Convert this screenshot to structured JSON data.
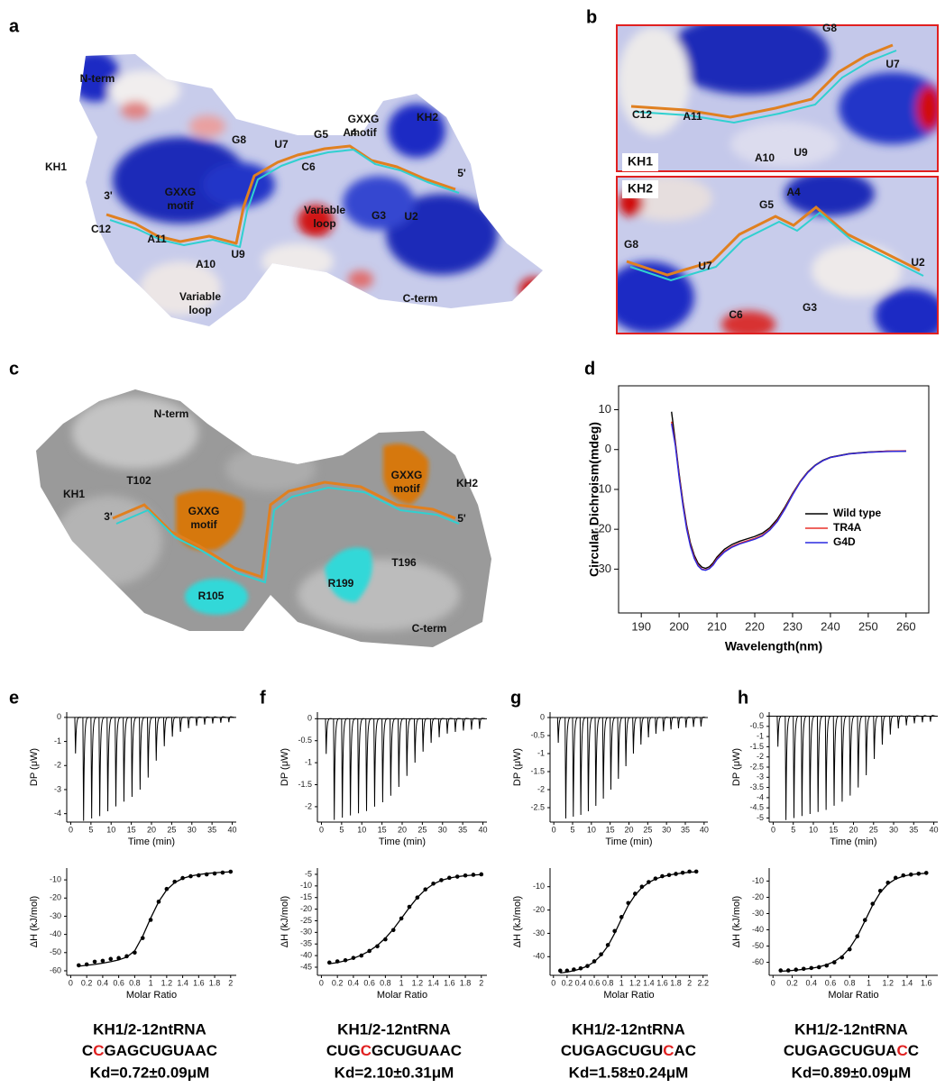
{
  "panel_labels": [
    "a",
    "b",
    "c",
    "d",
    "e",
    "f",
    "g",
    "h"
  ],
  "panel_a": {
    "labels": [
      "N-term",
      "KH1",
      "3'",
      [
        "GXXG",
        "motif"
      ],
      "C12",
      "A11",
      "A10",
      "U9",
      [
        "Variable",
        "loop"
      ],
      "G8",
      "U7",
      "G5",
      "A4",
      [
        "GXXG",
        "motif"
      ],
      "KH2",
      "C6",
      [
        "Variable",
        "loop"
      ],
      "G3",
      "U2",
      "5'",
      "C-term"
    ]
  },
  "panel_b": {
    "top": {
      "domain": "KH1",
      "labels": [
        "G8",
        "U7",
        "C12",
        "A11",
        "A10",
        "U9"
      ]
    },
    "bottom": {
      "domain": "KH2",
      "labels": [
        "A4",
        "G5",
        "G8",
        "U7",
        "C6",
        "U2",
        "G3"
      ]
    }
  },
  "panel_c": {
    "labels": [
      "N-term",
      "KH1",
      "T102",
      [
        "GXXG",
        "motif"
      ],
      "3'",
      "R105",
      "C-term",
      "R199",
      "T196",
      [
        "GXXG",
        "motif"
      ],
      "KH2",
      "5'"
    ]
  },
  "itc_captions": [
    {
      "construct": "KH1/2-12ntRNA",
      "sequence": [
        "C",
        "C",
        "GAGCUGUAAC"
      ],
      "kd": "Kd=0.72±0.09μM"
    },
    {
      "construct": "KH1/2-12ntRNA",
      "sequence": [
        "CUG",
        "C",
        "GCUGUAAC"
      ],
      "kd": "Kd=2.10±0.31μM"
    },
    {
      "construct": "KH1/2-12ntRNA",
      "sequence": [
        "CUGAGCUGU",
        "C",
        "AC"
      ],
      "kd": "Kd=1.58±0.24μM"
    },
    {
      "construct": "KH1/2-12ntRNA",
      "sequence": [
        "CUGAGCUGUA",
        "C",
        "C"
      ],
      "kd": "Kd=0.89±0.09μM"
    }
  ],
  "chart_data": [
    {
      "type": "line",
      "x_label": "Wavelength(nm)",
      "y_label": "Circular Dichroism(mdeg)",
      "x": [
        198,
        199,
        200,
        201,
        202,
        203,
        204,
        205,
        206,
        207,
        208,
        209,
        210,
        212,
        214,
        216,
        218,
        220,
        222,
        224,
        226,
        228,
        230,
        232,
        234,
        236,
        238,
        240,
        245,
        250,
        255,
        260
      ],
      "series": [
        {
          "name": "Wild type",
          "color": "#000000",
          "values": [
            9.5,
            2,
            -6,
            -13,
            -19,
            -23.5,
            -26.5,
            -28.5,
            -29.5,
            -29.8,
            -29.4,
            -28.4,
            -27,
            -25,
            -23.8,
            -23,
            -22.4,
            -21.8,
            -21,
            -19.6,
            -17.4,
            -14.4,
            -11,
            -8,
            -5.6,
            -3.9,
            -2.7,
            -1.9,
            -1,
            -0.6,
            -0.4,
            -0.4
          ]
        },
        {
          "name": "TR4A",
          "color": "#e8302a",
          "values": [
            7,
            1.5,
            -6.5,
            -13.5,
            -19.5,
            -24,
            -27,
            -29,
            -30,
            -30.2,
            -29.8,
            -28.8,
            -27.4,
            -25.5,
            -24.3,
            -23.5,
            -22.9,
            -22.3,
            -21.5,
            -20,
            -17.8,
            -14.7,
            -11.2,
            -8.1,
            -5.7,
            -4,
            -2.8,
            -2,
            -1.1,
            -0.7,
            -0.4,
            -0.3
          ]
        },
        {
          "name": "G4D",
          "color": "#2a2ae0",
          "values": [
            6.5,
            1,
            -7,
            -14,
            -20,
            -24.3,
            -27.3,
            -29.2,
            -30.1,
            -30.3,
            -29.9,
            -29,
            -27.6,
            -25.7,
            -24.5,
            -23.7,
            -23.1,
            -22.5,
            -21.7,
            -20.2,
            -18,
            -14.9,
            -11.4,
            -8.2,
            -5.8,
            -4,
            -2.8,
            -2,
            -1.1,
            -0.7,
            -0.5,
            -0.4
          ]
        }
      ],
      "xlim": [
        184,
        266
      ],
      "ylim": [
        -41,
        16
      ],
      "xticks": [
        190,
        200,
        210,
        220,
        230,
        240,
        250,
        260
      ],
      "yticks": [
        10,
        0,
        -10,
        -20,
        -30
      ],
      "legend": "right"
    },
    {
      "type": "thermogram",
      "x_label": "Time (min)",
      "y_label": "DP (μW)",
      "color": "#000000",
      "x": [
        1,
        3,
        5,
        7,
        9,
        11,
        13,
        15,
        17,
        19,
        21,
        23,
        25,
        27,
        29,
        31,
        33,
        35,
        37,
        39
      ],
      "values": [
        -1.5,
        -4.3,
        -4.2,
        -4.1,
        -3.9,
        -3.7,
        -3.5,
        -3.3,
        -3,
        -2.5,
        -1.8,
        -1.2,
        -0.8,
        -0.6,
        -0.45,
        -0.35,
        -0.3,
        -0.25,
        -0.22,
        -0.2
      ],
      "xlim": [
        -1,
        41
      ],
      "ylim": [
        -4.35,
        0.22
      ],
      "xticks": [
        0,
        5,
        10,
        15,
        20,
        25,
        30,
        35,
        40
      ],
      "yticks": [
        0,
        -1,
        -2,
        -3,
        -4
      ]
    },
    {
      "type": "scatter",
      "x_label": "Molar Ratio",
      "y_label": "ΔH (kJ/mol)",
      "series": [
        {
          "color": "#000000",
          "x": [
            0.1,
            0.2,
            0.3,
            0.4,
            0.5,
            0.6,
            0.7,
            0.8,
            0.9,
            1,
            1.1,
            1.2,
            1.3,
            1.4,
            1.5,
            1.6,
            1.7,
            1.8,
            1.9,
            2
          ],
          "values": [
            -57,
            -56.5,
            -55,
            -54.5,
            -53.5,
            -53,
            -52,
            -50,
            -42,
            -32,
            -22,
            -15,
            -11,
            -9,
            -8,
            -7.5,
            -7,
            -6.5,
            -6,
            -5.5
          ]
        },
        {
          "color": "#000000",
          "style": "line",
          "x": [
            0.1,
            0.2,
            0.3,
            0.4,
            0.5,
            0.6,
            0.7,
            0.8,
            0.9,
            1,
            1.1,
            1.2,
            1.3,
            1.4,
            1.5,
            1.6,
            1.7,
            1.8,
            1.9,
            2
          ],
          "values": [
            -57.5,
            -57,
            -56.5,
            -55.8,
            -55,
            -54,
            -52.5,
            -49,
            -41,
            -31,
            -22,
            -15.5,
            -11.5,
            -9.2,
            -7.9,
            -7.1,
            -6.5,
            -6.1,
            -5.8,
            -5.6
          ]
        }
      ],
      "xlim": [
        -0.05,
        2.07
      ],
      "ylim": [
        -62.5,
        -3.5
      ],
      "xticks": [
        0,
        0.2,
        0.4,
        0.6,
        0.8,
        1,
        1.2,
        1.4,
        1.6,
        1.8,
        2
      ],
      "yticks": [
        -10,
        -20,
        -30,
        -40,
        -50,
        -60
      ]
    },
    {
      "type": "thermogram",
      "x_label": "Time (min)",
      "y_label": "DP (μW)",
      "color": "#000000",
      "x": [
        1,
        3,
        5,
        7,
        9,
        11,
        13,
        15,
        17,
        19,
        21,
        23,
        25,
        27,
        29,
        31,
        33,
        35,
        37,
        39
      ],
      "values": [
        -0.8,
        -2.3,
        -2.25,
        -2.2,
        -2.15,
        -2.1,
        -2,
        -1.9,
        -1.75,
        -1.55,
        -1.3,
        -1,
        -0.75,
        -0.55,
        -0.42,
        -0.34,
        -0.3,
        -0.27,
        -0.25,
        -0.23
      ],
      "xlim": [
        -1,
        41
      ],
      "ylim": [
        -2.35,
        0.15
      ],
      "xticks": [
        0,
        5,
        10,
        15,
        20,
        25,
        30,
        35,
        40
      ],
      "yticks": [
        0,
        -0.5,
        -1,
        -1.5,
        -2
      ]
    },
    {
      "type": "scatter",
      "x_label": "Molar Ratio",
      "y_label": "ΔH (kJ/mol)",
      "series": [
        {
          "color": "#000000",
          "x": [
            0.1,
            0.2,
            0.3,
            0.4,
            0.5,
            0.6,
            0.7,
            0.8,
            0.9,
            1,
            1.1,
            1.2,
            1.3,
            1.4,
            1.5,
            1.6,
            1.7,
            1.8,
            1.9,
            2
          ],
          "values": [
            -43,
            -42.5,
            -42,
            -41,
            -40,
            -38,
            -36,
            -33,
            -29,
            -24,
            -19,
            -15,
            -11.5,
            -9,
            -7.5,
            -6.5,
            -6,
            -5.5,
            -5.2,
            -5
          ]
        },
        {
          "color": "#000000",
          "style": "line",
          "x": [
            0.1,
            0.2,
            0.3,
            0.4,
            0.5,
            0.6,
            0.7,
            0.8,
            0.9,
            1,
            1.1,
            1.2,
            1.3,
            1.4,
            1.5,
            1.6,
            1.7,
            1.8,
            1.9,
            2
          ],
          "values": [
            -43.5,
            -43,
            -42.2,
            -41.2,
            -39.8,
            -38,
            -35.6,
            -32.5,
            -28.6,
            -24,
            -19.3,
            -15,
            -11.6,
            -9.2,
            -7.6,
            -6.6,
            -6,
            -5.6,
            -5.3,
            -5.1
          ]
        }
      ],
      "xlim": [
        -0.05,
        2.07
      ],
      "ylim": [
        -48.5,
        -2.3
      ],
      "xticks": [
        0,
        0.2,
        0.4,
        0.6,
        0.8,
        1,
        1.2,
        1.4,
        1.6,
        1.8,
        2
      ],
      "yticks": [
        -5,
        -10,
        -15,
        -20,
        -25,
        -30,
        -35,
        -40,
        -45
      ]
    },
    {
      "type": "thermogram",
      "x_label": "Time (min)",
      "y_label": "DP (μW)",
      "color": "#000000",
      "x": [
        1,
        3,
        5,
        7,
        9,
        11,
        13,
        15,
        17,
        19,
        21,
        23,
        25,
        27,
        29,
        31,
        33,
        35,
        37,
        39
      ],
      "values": [
        -0.7,
        -2.8,
        -2.75,
        -2.7,
        -2.6,
        -2.45,
        -2.25,
        -2,
        -1.7,
        -1.35,
        -1,
        -0.75,
        -0.55,
        -0.45,
        -0.38,
        -0.33,
        -0.3,
        -0.28,
        -0.26,
        -0.25
      ],
      "xlim": [
        -1,
        41
      ],
      "ylim": [
        -2.9,
        0.15
      ],
      "xticks": [
        0,
        5,
        10,
        15,
        20,
        25,
        30,
        35,
        40
      ],
      "yticks": [
        0,
        -0.5,
        -1,
        -1.5,
        -2,
        -2.5
      ]
    },
    {
      "type": "scatter",
      "x_label": "Molar Ratio",
      "y_label": "ΔH (kJ/mol)",
      "series": [
        {
          "color": "#000000",
          "x": [
            0.1,
            0.2,
            0.3,
            0.4,
            0.5,
            0.6,
            0.7,
            0.8,
            0.9,
            1,
            1.1,
            1.2,
            1.3,
            1.4,
            1.5,
            1.6,
            1.7,
            1.8,
            1.9,
            2,
            2.1
          ],
          "values": [
            -46,
            -46,
            -45.5,
            -45,
            -44,
            -42,
            -39,
            -35,
            -29,
            -23,
            -17,
            -13,
            -10,
            -8,
            -6.5,
            -5.5,
            -5,
            -4.5,
            -4,
            -3.5,
            -3.5
          ]
        },
        {
          "color": "#000000",
          "style": "line",
          "x": [
            0.1,
            0.2,
            0.3,
            0.4,
            0.5,
            0.6,
            0.7,
            0.8,
            0.9,
            1,
            1.1,
            1.2,
            1.3,
            1.4,
            1.5,
            1.6,
            1.7,
            1.8,
            1.9,
            2,
            2.1
          ],
          "values": [
            -47,
            -46.6,
            -46,
            -45.2,
            -44,
            -42.2,
            -39.4,
            -35.4,
            -30,
            -23.8,
            -18,
            -13.6,
            -10.4,
            -8.2,
            -6.7,
            -5.7,
            -5,
            -4.5,
            -4.1,
            -3.8,
            -3.6
          ]
        }
      ],
      "xlim": [
        -0.05,
        2.27
      ],
      "ylim": [
        -48,
        -2
      ],
      "xticks": [
        0,
        0.2,
        0.4,
        0.6,
        0.8,
        1,
        1.2,
        1.4,
        1.6,
        1.8,
        2,
        2.2
      ],
      "yticks": [
        -10,
        -20,
        -30,
        -40
      ]
    },
    {
      "type": "thermogram",
      "x_label": "Time (min)",
      "y_label": "DP (μW)",
      "color": "#000000",
      "x": [
        1,
        3,
        5,
        7,
        9,
        11,
        13,
        15,
        17,
        19,
        21,
        23,
        25,
        27,
        29,
        31,
        33,
        35,
        37,
        39
      ],
      "values": [
        -1.5,
        -5.1,
        -5,
        -4.9,
        -4.8,
        -4.7,
        -4.6,
        -4.4,
        -4.2,
        -3.9,
        -3.5,
        -2.9,
        -2.1,
        -1.4,
        -0.9,
        -0.6,
        -0.45,
        -0.35,
        -0.3,
        -0.27
      ],
      "xlim": [
        -1,
        41
      ],
      "ylim": [
        -5.2,
        0.2
      ],
      "xticks": [
        0,
        5,
        10,
        15,
        20,
        25,
        30,
        35,
        40
      ],
      "yticks": [
        0,
        -0.5,
        -1,
        -1.5,
        -2,
        -2.5,
        -3,
        -3.5,
        -4,
        -4.5,
        -5
      ]
    },
    {
      "type": "scatter",
      "x_label": "Molar Ratio",
      "y_label": "ΔH (kJ/mol)",
      "series": [
        {
          "color": "#000000",
          "x": [
            0.08,
            0.16,
            0.24,
            0.32,
            0.4,
            0.48,
            0.56,
            0.64,
            0.72,
            0.8,
            0.88,
            0.96,
            1.04,
            1.12,
            1.2,
            1.28,
            1.36,
            1.44,
            1.52,
            1.6
          ],
          "values": [
            -65,
            -65,
            -64.5,
            -64,
            -63.5,
            -63,
            -62,
            -60,
            -57,
            -52,
            -44,
            -34,
            -24,
            -16,
            -11,
            -8,
            -6.5,
            -6,
            -5.5,
            -5
          ]
        },
        {
          "color": "#000000",
          "style": "line",
          "x": [
            0.08,
            0.16,
            0.24,
            0.32,
            0.4,
            0.48,
            0.56,
            0.64,
            0.72,
            0.8,
            0.88,
            0.96,
            1.04,
            1.12,
            1.2,
            1.28,
            1.36,
            1.44,
            1.52,
            1.6
          ],
          "values": [
            -65.5,
            -65.2,
            -64.8,
            -64.3,
            -63.7,
            -62.8,
            -61.5,
            -59.5,
            -56.3,
            -51.3,
            -44,
            -34.5,
            -24.8,
            -17,
            -11.8,
            -8.7,
            -7,
            -6,
            -5.5,
            -5.2
          ]
        }
      ],
      "xlim": [
        -0.04,
        1.72
      ],
      "ylim": [
        -68,
        -2
      ],
      "xticks": [
        0,
        0.2,
        0.4,
        0.6,
        0.8,
        1,
        1.2,
        1.4,
        1.6
      ],
      "yticks": [
        -10,
        -20,
        -30,
        -40,
        -50,
        -60
      ]
    }
  ]
}
